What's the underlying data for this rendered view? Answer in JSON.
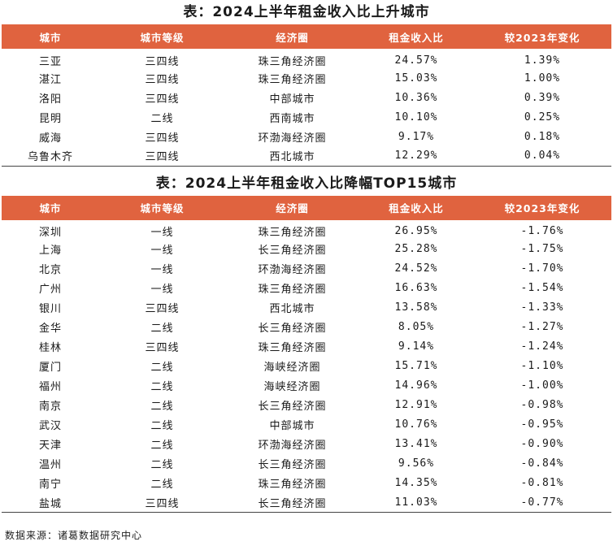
{
  "table1": {
    "title": "表：2024上半年租金收入比上升城市",
    "headers": [
      "城市",
      "城市等级",
      "经济圈",
      "租金收入比",
      "较2023年变化"
    ],
    "rows": [
      [
        "三亚",
        "三四线",
        "珠三角经济圈",
        "24.57%",
        "1.39%"
      ],
      [
        "湛江",
        "三四线",
        "珠三角经济圈",
        "15.03%",
        "1.00%"
      ],
      [
        "洛阳",
        "三四线",
        "中部城市",
        "10.36%",
        "0.39%"
      ],
      [
        "昆明",
        "二线",
        "西南城市",
        "10.10%",
        "0.25%"
      ],
      [
        "威海",
        "三四线",
        "环渤海经济圈",
        "9.17%",
        "0.18%"
      ],
      [
        "乌鲁木齐",
        "三四线",
        "西北城市",
        "12.29%",
        "0.04%"
      ]
    ]
  },
  "table2": {
    "title": "表：2024上半年租金收入比降幅TOP15城市",
    "headers": [
      "城市",
      "城市等级",
      "经济圈",
      "租金收入比",
      "较2023年变化"
    ],
    "rows": [
      [
        "深圳",
        "一线",
        "珠三角经济圈",
        "26.95%",
        "-1.76%"
      ],
      [
        "上海",
        "一线",
        "长三角经济圈",
        "25.28%",
        "-1.75%"
      ],
      [
        "北京",
        "一线",
        "环渤海经济圈",
        "24.52%",
        "-1.70%"
      ],
      [
        "广州",
        "一线",
        "珠三角经济圈",
        "16.63%",
        "-1.54%"
      ],
      [
        "银川",
        "三四线",
        "西北城市",
        "13.58%",
        "-1.33%"
      ],
      [
        "金华",
        "二线",
        "长三角经济圈",
        "8.05%",
        "-1.27%"
      ],
      [
        "桂林",
        "三四线",
        "珠三角经济圈",
        "9.14%",
        "-1.24%"
      ],
      [
        "厦门",
        "二线",
        "海峡经济圈",
        "15.71%",
        "-1.10%"
      ],
      [
        "福州",
        "二线",
        "海峡经济圈",
        "14.96%",
        "-1.00%"
      ],
      [
        "南京",
        "二线",
        "长三角经济圈",
        "12.91%",
        "-0.98%"
      ],
      [
        "武汉",
        "二线",
        "中部城市",
        "10.76%",
        "-0.95%"
      ],
      [
        "天津",
        "二线",
        "环渤海经济圈",
        "13.41%",
        "-0.90%"
      ],
      [
        "温州",
        "二线",
        "长三角经济圈",
        "9.56%",
        "-0.84%"
      ],
      [
        "南宁",
        "二线",
        "珠三角经济圈",
        "14.35%",
        "-0.81%"
      ],
      [
        "盐城",
        "三四线",
        "长三角经济圈",
        "11.03%",
        "-0.77%"
      ]
    ]
  },
  "source": "数据来源：诸葛数据研究中心",
  "colors": {
    "header_bg": "#e0633f",
    "header_text": "#ffffff"
  }
}
